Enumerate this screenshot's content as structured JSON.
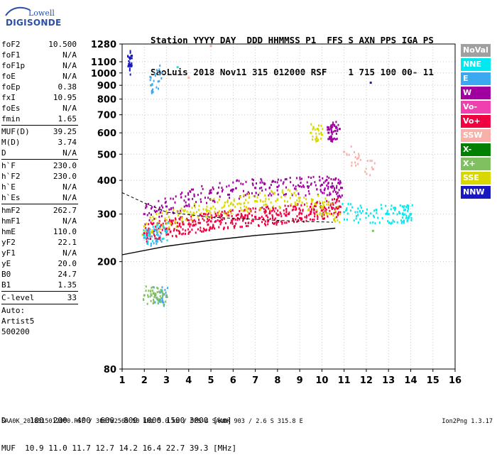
{
  "logo": {
    "line1": "Lowell",
    "line2": "DIGISONDE"
  },
  "header": {
    "line1": "Station YYYY DAY  DDD HHMMSS P1  FFS S AXN PPS IGA PS",
    "line2": "SaoLuis 2018 Nov11 315 012000 RSF    1 715 100 00- 11"
  },
  "params": [
    {
      "k": "foF2",
      "v": "10.500"
    },
    {
      "k": "foF1",
      "v": "N/A"
    },
    {
      "k": "foF1p",
      "v": "N/A"
    },
    {
      "k": "foE",
      "v": "N/A"
    },
    {
      "k": "foEp",
      "v": "0.38"
    },
    {
      "k": "fxI",
      "v": "10.95"
    },
    {
      "k": "foEs",
      "v": "N/A"
    },
    {
      "k": "fmin",
      "v": "1.65"
    },
    {
      "sep": true
    },
    {
      "k": "MUF(D)",
      "v": "39.25"
    },
    {
      "k": "M(D)",
      "v": "3.74"
    },
    {
      "k": "D",
      "v": "N/A"
    },
    {
      "sep": true
    },
    {
      "k": "h`F",
      "v": "230.0"
    },
    {
      "k": "h`F2",
      "v": "230.0"
    },
    {
      "k": "h`E",
      "v": "N/A"
    },
    {
      "k": "h`Es",
      "v": "N/A"
    },
    {
      "sep": true
    },
    {
      "k": "hmF2",
      "v": "262.7"
    },
    {
      "k": "hmF1",
      "v": "N/A"
    },
    {
      "k": "hmE",
      "v": "110.0"
    },
    {
      "k": "yF2",
      "v": "22.1"
    },
    {
      "k": "yF1",
      "v": "N/A"
    },
    {
      "k": "yE",
      "v": "20.0"
    },
    {
      "k": "B0",
      "v": "24.7"
    },
    {
      "k": "B1",
      "v": "1.35"
    },
    {
      "sep": true
    },
    {
      "k": "C-level",
      "v": "33"
    },
    {
      "sep": true
    },
    {
      "t": "Auto:"
    },
    {
      "t": "Artist5"
    },
    {
      "t": "500200"
    }
  ],
  "legend": [
    {
      "label": "NoVal",
      "color": "#a0a0a0"
    },
    {
      "label": "NNE",
      "color": "#00e8f0"
    },
    {
      "label": "E",
      "color": "#3ba8f0"
    },
    {
      "label": "W",
      "color": "#a000a0"
    },
    {
      "label": "Vo-",
      "color": "#f040b0"
    },
    {
      "label": "Vo+",
      "color": "#f00040"
    },
    {
      "label": "SSW",
      "color": "#f8b0a8"
    },
    {
      "label": "X-",
      "color": "#008000"
    },
    {
      "label": "X+",
      "color": "#80c060"
    },
    {
      "label": "SSE",
      "color": "#d8d800"
    },
    {
      "label": "NNW",
      "color": "#1818c0"
    }
  ],
  "footer": {
    "line1": "D     100  200  400  600  800 1000 1500 3000 [km]",
    "line2": "MUF  10.9 11.0 11.7 12.7 14.2 16.4 22.7 39.3 [MHz]"
  },
  "source_line": "SAA0K_2018315012000.RSF / 300fx256h 50 kHz 5.0 km / DPS-4 SAA0K 903 / 2.6 S 315.8 E",
  "version": "Ion2Png 1.3.17",
  "chart_data": {
    "type": "scatter",
    "title": "",
    "xlabel": "",
    "ylabel": "",
    "xlim": [
      1,
      16
    ],
    "ylim": [
      80,
      1280
    ],
    "x_ticks": [
      1,
      2,
      3,
      4,
      5,
      6,
      7,
      8,
      9,
      10,
      11,
      12,
      13,
      14,
      15,
      16
    ],
    "y_ticks": [
      80,
      200,
      300,
      400,
      500,
      600,
      700,
      800,
      900,
      1000,
      1100,
      1280
    ],
    "y_scale": "log",
    "grid": true,
    "series": [
      {
        "name": "Vo+",
        "color": "#f00040",
        "points": [
          [
            2,
            255
          ],
          [
            2.5,
            262
          ],
          [
            3,
            265
          ],
          [
            3.5,
            270
          ],
          [
            4,
            275
          ],
          [
            4.5,
            278
          ],
          [
            5,
            282
          ],
          [
            5.5,
            286
          ],
          [
            6,
            288
          ],
          [
            6.5,
            291
          ],
          [
            7,
            293
          ],
          [
            7.5,
            296
          ],
          [
            8,
            298
          ],
          [
            8.5,
            300
          ],
          [
            9,
            303
          ],
          [
            9.5,
            306
          ],
          [
            10,
            310
          ],
          [
            10.5,
            316
          ],
          [
            10.8,
            320
          ]
        ]
      },
      {
        "name": "W",
        "color": "#a000a0",
        "points": [
          [
            2,
            300
          ],
          [
            3,
            320
          ],
          [
            4,
            340
          ],
          [
            5,
            360
          ],
          [
            6,
            370
          ],
          [
            7,
            375
          ],
          [
            8,
            378
          ],
          [
            9,
            380
          ],
          [
            10,
            385
          ],
          [
            10.5,
            380
          ],
          [
            10.9,
            375
          ],
          [
            10.6,
            610
          ],
          [
            10.3,
            600
          ],
          [
            10.8,
            620
          ]
        ]
      },
      {
        "name": "SSE",
        "color": "#d8d800",
        "points": [
          [
            2,
            270
          ],
          [
            3,
            285
          ],
          [
            4,
            300
          ],
          [
            5,
            315
          ],
          [
            6,
            325
          ],
          [
            7,
            335
          ],
          [
            8,
            340
          ],
          [
            9,
            345
          ],
          [
            10,
            320
          ],
          [
            10.8,
            300
          ],
          [
            9.5,
            600
          ],
          [
            10,
            590
          ]
        ]
      },
      {
        "name": "NNE",
        "color": "#00e8f0",
        "points": [
          [
            2,
            250
          ],
          [
            3,
            260
          ],
          [
            11,
            305
          ],
          [
            12,
            302
          ],
          [
            13,
            300
          ],
          [
            14,
            300
          ],
          [
            13.5,
            302
          ],
          [
            3.5,
            1050
          ]
        ]
      },
      {
        "name": "E",
        "color": "#3ba8f0",
        "points": [
          [
            2,
            245
          ],
          [
            3,
            255
          ],
          [
            2.3,
            900
          ],
          [
            2.8,
            1000
          ],
          [
            3,
            148
          ],
          [
            2.5,
            150
          ]
        ]
      },
      {
        "name": "X+",
        "color": "#80c060",
        "points": [
          [
            2,
            150
          ],
          [
            2.5,
            152
          ],
          [
            3,
            150
          ],
          [
            12.3,
            260
          ]
        ]
      },
      {
        "name": "SSW",
        "color": "#f8b0a8",
        "points": [
          [
            4,
            960
          ],
          [
            5,
            1260
          ],
          [
            11,
            510
          ],
          [
            12.3,
            440
          ]
        ]
      },
      {
        "name": "NNW",
        "color": "#1818c0",
        "points": [
          [
            1.35,
            1140
          ],
          [
            1.35,
            1060
          ],
          [
            12.2,
            920
          ]
        ]
      }
    ],
    "annotations": []
  }
}
